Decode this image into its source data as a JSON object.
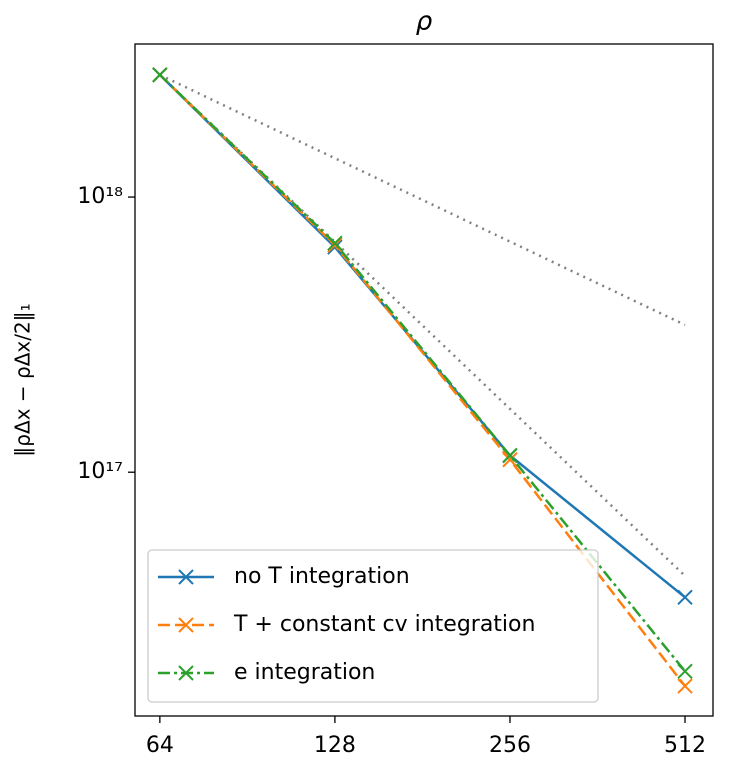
{
  "chart_data": {
    "type": "line",
    "title": "ρ",
    "ylabel": "‖ρΔx − ρΔx/2‖₁",
    "x": [
      64,
      128,
      256,
      512
    ],
    "series": [
      {
        "name": "no T integration",
        "color": "#1f77b4",
        "linestyle": "solid",
        "values": [
          2.78e+18,
          6.58e+17,
          1.15e+17,
          3.51e+16
        ]
      },
      {
        "name": "T + constant cv integration",
        "color": "#ff7f0e",
        "linestyle": "dashed",
        "values": [
          2.78e+18,
          6.69e+17,
          1.11e+17,
          1.67e+16
        ]
      },
      {
        "name": "e integration",
        "color": "#2ca02c",
        "linestyle": "dashdot",
        "values": [
          2.78e+18,
          6.8e+17,
          1.15e+17,
          1.89e+16
        ]
      }
    ],
    "reference_lines": [
      {
        "color": "#808080",
        "x": [
          64,
          512
        ],
        "values": [
          2.78e+18,
          3.43e+17
        ]
      },
      {
        "color": "#808080",
        "x": [
          64,
          512
        ],
        "values": [
          2.78e+18,
          4.2e+16
        ]
      }
    ],
    "xscale": "log",
    "yscale": "log",
    "xlim": [
      58,
      572
    ],
    "ylim": [
      1.3e+16,
      3.6e+18
    ],
    "xticks": [
      64,
      128,
      256,
      512
    ],
    "yticks": [
      {
        "value": 1e+17,
        "label": "10¹⁷"
      },
      {
        "value": 1e+18,
        "label": "10¹⁸"
      }
    ],
    "legend": "lower left"
  }
}
